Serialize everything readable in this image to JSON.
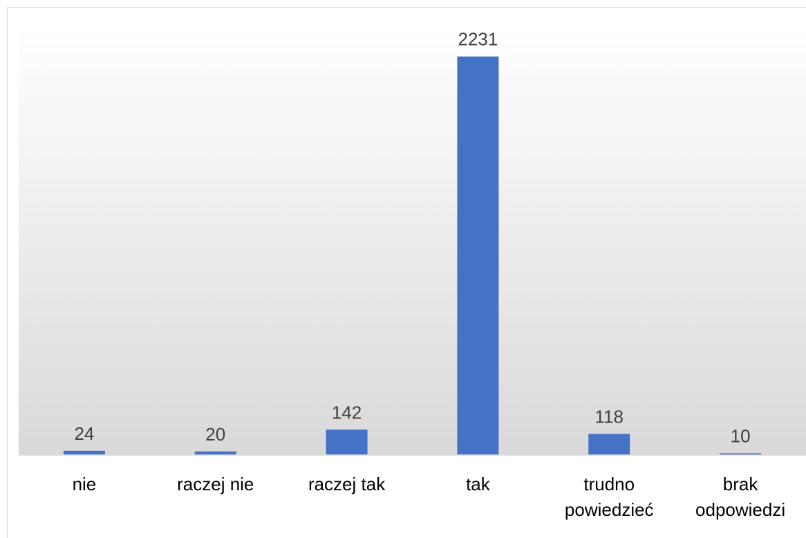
{
  "chart_data": {
    "type": "bar",
    "categories": [
      "nie",
      "raczej nie",
      "raczej tak",
      "tak",
      "trudno powiedzieć",
      "brak odpowiedzi"
    ],
    "category_lines": [
      [
        "nie"
      ],
      [
        "raczej nie"
      ],
      [
        "raczej tak"
      ],
      [
        "tak"
      ],
      [
        "trudno",
        "powiedzieć"
      ],
      [
        "brak",
        "odpowiedzi"
      ]
    ],
    "values": [
      24,
      20,
      142,
      2231,
      118,
      10
    ],
    "title": "",
    "xlabel": "",
    "ylabel": "",
    "ylim": [
      0,
      2400
    ],
    "grid": false,
    "legend": "none",
    "bar_color": "#4472C4",
    "background_gradient": [
      "#ffffff",
      "#d9d9d9"
    ]
  }
}
